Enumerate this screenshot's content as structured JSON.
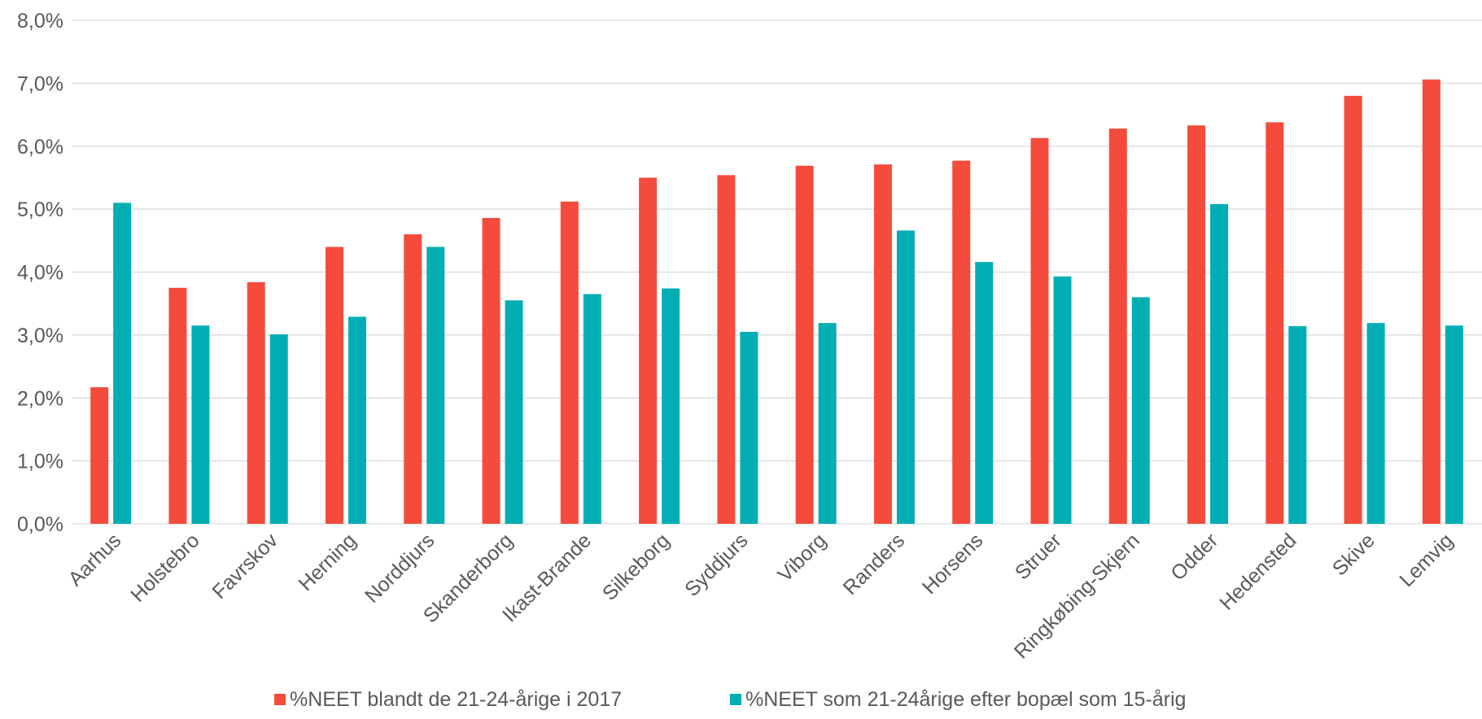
{
  "chart_data": {
    "type": "bar",
    "categories": [
      "Aarhus",
      "Holstebro",
      "Favrskov",
      "Herning",
      "Norddjurs",
      "Skanderborg",
      "Ikast-Brande",
      "Silkeborg",
      "Syddjurs",
      "Viborg",
      "Randers",
      "Horsens",
      "Struer",
      "Ringkøbing-Skjern",
      "Odder",
      "Hedensted",
      "Skive",
      "Lemvig"
    ],
    "series": [
      {
        "name": "%NEET blandt de 21-24-årige i 2017",
        "color": "#f44b3c",
        "values": [
          2.17,
          3.75,
          3.84,
          4.4,
          4.6,
          4.86,
          5.12,
          5.5,
          5.54,
          5.69,
          5.71,
          5.77,
          6.13,
          6.28,
          6.33,
          6.38,
          6.8,
          7.06
        ]
      },
      {
        "name": "%NEET som 21-24årige efter bopæl som 15-årig",
        "color": "#00aeb3",
        "values": [
          5.1,
          3.15,
          3.01,
          3.29,
          4.4,
          3.55,
          3.65,
          3.74,
          3.05,
          3.19,
          4.66,
          4.16,
          3.93,
          3.6,
          5.08,
          3.14,
          3.19,
          3.15
        ]
      }
    ],
    "ylim": [
      0,
      8
    ],
    "yticks": [
      "0,0%",
      "1,0%",
      "2,0%",
      "3,0%",
      "4,0%",
      "5,0%",
      "6,0%",
      "7,0%",
      "8,0%"
    ],
    "grid": true,
    "legend_position": "bottom",
    "title": "",
    "xlabel": "",
    "ylabel": ""
  }
}
